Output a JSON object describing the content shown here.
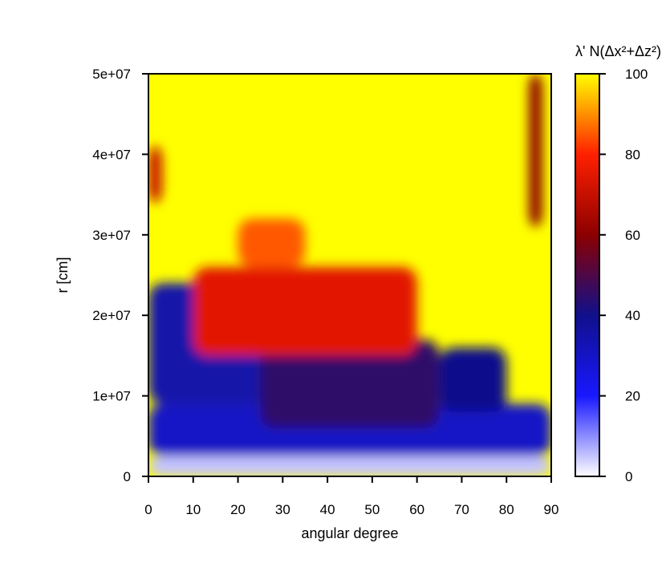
{
  "chart_data": {
    "type": "heatmap",
    "title": "",
    "xlabel": "angular degree",
    "ylabel": "r [cm]",
    "xlim": [
      0,
      90
    ],
    "ylim": [
      0,
      50000000
    ],
    "x_ticks": [
      0,
      10,
      20,
      30,
      40,
      50,
      60,
      70,
      80,
      90
    ],
    "x_tick_labels": [
      "0",
      "10",
      "20",
      "30",
      "40",
      "50",
      "60",
      "70",
      "80",
      "90"
    ],
    "y_ticks": [
      0,
      10000000,
      20000000,
      30000000,
      40000000,
      50000000
    ],
    "y_tick_labels": [
      "0",
      "1e+07",
      "2e+07",
      "3e+07",
      "4e+07",
      "5e+07"
    ],
    "colorbar": {
      "label": "λ' N(Δx²+Δz²)",
      "range": [
        0,
        100
      ],
      "ticks": [
        0,
        20,
        40,
        60,
        80,
        100
      ],
      "tick_labels": [
        "0",
        "20",
        "40",
        "60",
        "80",
        "100"
      ],
      "colormap": [
        {
          "value": 0,
          "color": "#ffffff"
        },
        {
          "value": 20,
          "color": "#1818ff"
        },
        {
          "value": 40,
          "color": "#10108c"
        },
        {
          "value": 60,
          "color": "#8c0000"
        },
        {
          "value": 80,
          "color": "#ff2000"
        },
        {
          "value": 100,
          "color": "#ffff00"
        }
      ]
    },
    "field": {
      "description_free": true,
      "background_value": 100,
      "regions": [
        {
          "x": [
            0,
            90
          ],
          "y": [
            0,
            2500000
          ],
          "value": 5
        },
        {
          "x": [
            0,
            90
          ],
          "y": [
            2500000,
            9000000
          ],
          "value": 30
        },
        {
          "x": [
            0,
            28
          ],
          "y": [
            9000000,
            24000000
          ],
          "value": 35
        },
        {
          "x": [
            25,
            65
          ],
          "y": [
            6000000,
            17000000
          ],
          "value": 45
        },
        {
          "x": [
            65,
            80
          ],
          "y": [
            8000000,
            16000000
          ],
          "value": 40
        },
        {
          "x": [
            10,
            60
          ],
          "y": [
            15000000,
            26000000
          ],
          "value": 75
        },
        {
          "x": [
            20,
            35
          ],
          "y": [
            26000000,
            32000000
          ],
          "value": 85
        },
        {
          "x": [
            85,
            88
          ],
          "y": [
            31000000,
            50000000
          ],
          "value": 60
        },
        {
          "x": [
            0,
            3
          ],
          "y": [
            34000000,
            41000000
          ],
          "value": 70
        }
      ]
    }
  }
}
